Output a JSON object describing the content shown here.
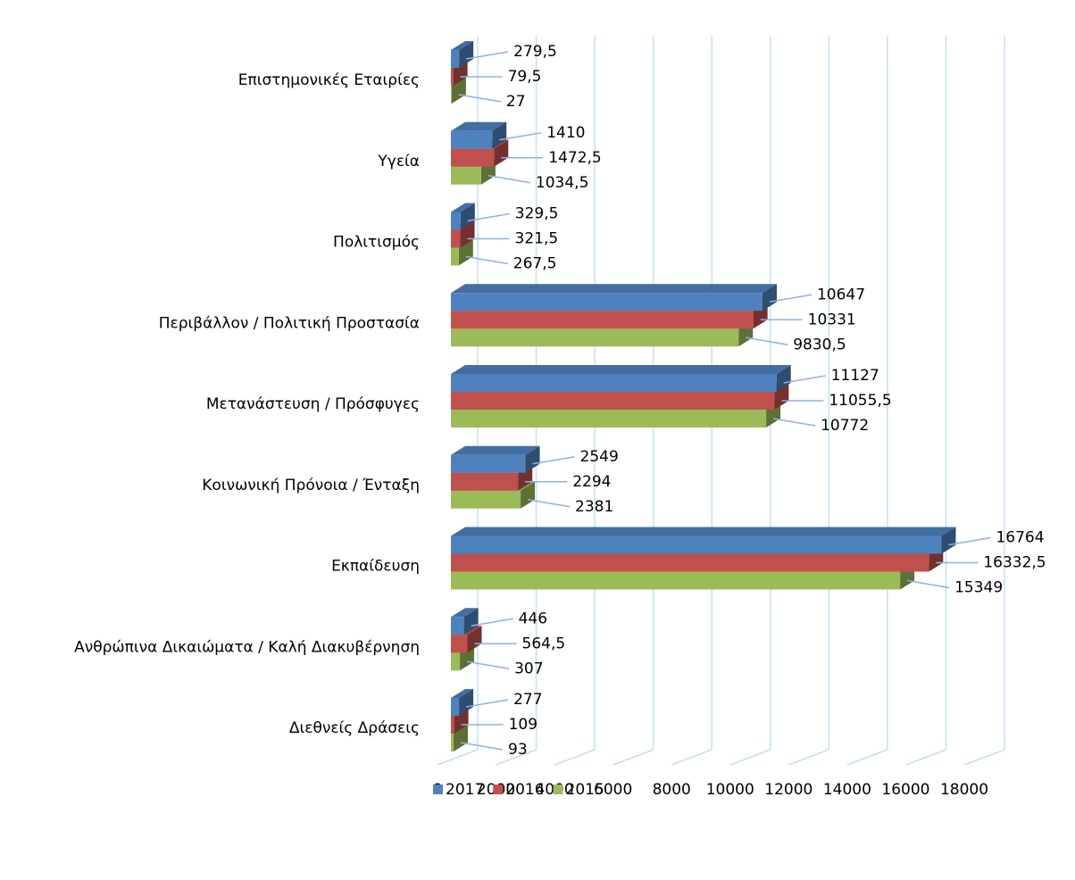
{
  "chart_data": {
    "type": "bar3d_horizontal",
    "categories": [
      "Επιστημονικές Εταιρίες",
      "Υγεία",
      "Πολιτισμός",
      "Περιβάλλον / Πολιτική Προστασία",
      "Μετανάστευση / Πρόσφυγες",
      "Κοινωνική Πρόνοια / Ένταξη",
      "Εκπαίδευση",
      "Ανθρώπινα Δικαιώματα / Καλή Διακυβέρνηση",
      "Διεθνείς Δράσεις"
    ],
    "series": [
      {
        "name": "2017",
        "color": "#4f81bd",
        "values": [
          279.5,
          1410,
          329.5,
          10647,
          11127,
          2549,
          16764,
          446,
          277
        ],
        "value_labels": [
          "279,5",
          "1410",
          "329,5",
          "10647",
          "11127",
          "2549",
          "16764",
          "446",
          "277"
        ]
      },
      {
        "name": "2016",
        "color": "#c0504d",
        "values": [
          79.5,
          1472.5,
          321.5,
          10331,
          11055.5,
          2294,
          16332.5,
          564.5,
          109
        ],
        "value_labels": [
          "79,5",
          "1472,5",
          "321,5",
          "10331",
          "11055,5",
          "2294",
          "16332,5",
          "564,5",
          "109"
        ]
      },
      {
        "name": "2015",
        "color": "#9bbb59",
        "values": [
          27,
          1034.5,
          267.5,
          9830.5,
          10772,
          2381,
          15349,
          307,
          93
        ],
        "value_labels": [
          "27",
          "1034,5",
          "267,5",
          "9830,5",
          "10772",
          "2381",
          "15349",
          "307",
          "93"
        ]
      }
    ],
    "xlim": [
      0,
      18000
    ],
    "xticks": [
      0,
      2000,
      4000,
      6000,
      8000,
      10000,
      12000,
      14000,
      16000,
      18000
    ],
    "grid": true,
    "legend": "bottom"
  }
}
